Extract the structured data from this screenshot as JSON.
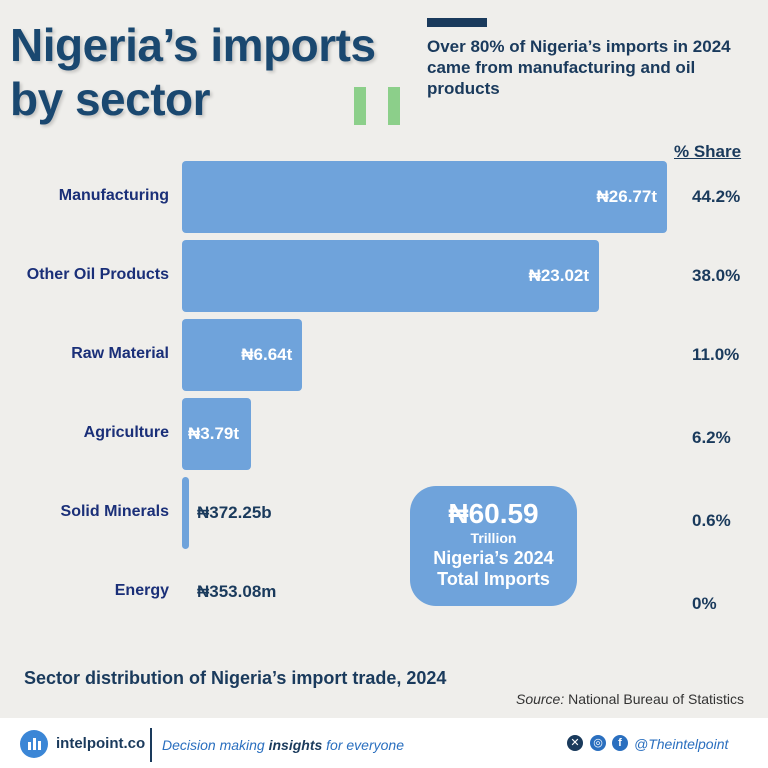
{
  "header": {
    "title_line1": "Nigeria’s imports",
    "title_line2": "by sector",
    "subtitle": "Over 80% of Nigeria’s imports in 2024 came from manufacturing and oil products",
    "share_header": "% Share"
  },
  "chart_data": {
    "type": "bar",
    "orientation": "horizontal",
    "categories": [
      "Manufacturing",
      "Other Oil Products",
      "Raw Material",
      "Agriculture",
      "Solid Minerals",
      "Energy"
    ],
    "values": [
      26.77,
      23.02,
      6.64,
      3.79,
      0.37225,
      0.00035308
    ],
    "unit": "trillion naira",
    "value_labels": [
      "₦26.77t",
      "₦23.02t",
      "₦6.64t",
      "₦3.79t",
      "₦372.25b",
      "₦353.08m"
    ],
    "shares": [
      "44.2%",
      "38.0%",
      "11.0%",
      "6.2%",
      "0.6%",
      "0%"
    ],
    "bar_color": "#6fa3db"
  },
  "total": {
    "amount": "₦60.59",
    "unit": "Trillion",
    "caption_line1": "Nigeria’s 2024",
    "caption_line2": "Total Imports"
  },
  "caption": "Sector distribution of Nigeria’s import trade, 2024",
  "source": {
    "label": "Source:",
    "text": "National Bureau of Statistics"
  },
  "footer": {
    "brand": "intelpoint.co",
    "tagline_prefix": "Decision making ",
    "tagline_bold": "insights",
    "tagline_suffix": " for everyone",
    "handle": "@Theintelpoint",
    "icons": [
      "x-icon",
      "instagram-icon",
      "facebook-icon"
    ]
  },
  "colors": {
    "title": "#1a4870",
    "accent_dark": "#1a3a5c",
    "accent_green": "#8ccf8a",
    "bar": "#6fa3db",
    "background": "#efeeeb"
  }
}
